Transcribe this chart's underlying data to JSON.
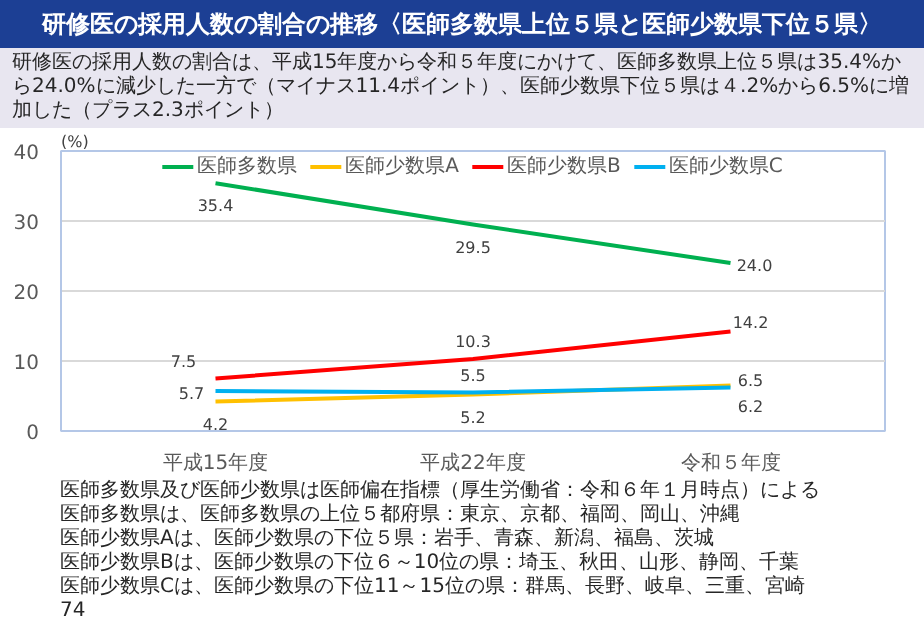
{
  "chart_data": {
    "type": "line",
    "title": "研修医の採用人数の割合の推移〈医師多数県上位５県と医師少数県下位５県〉",
    "subtitle": "研修医の採用人数の割合は、平成15年度から令和５年度にかけて、医師多数県上位５県は35.4%から24.0%に減少した一方で（マイナス11.4ポイント）、医師少数県下位５県は４.2%から6.5%に増加した（プラス2.3ポイント）",
    "ylabel": "(%)",
    "categories": [
      "平成15年度",
      "平成22年度",
      "令和５年度"
    ],
    "series": [
      {
        "name": "医師多数県",
        "color": "#00b050",
        "values": [
          35.4,
          29.5,
          24.0
        ],
        "value_labels": [
          "35.4",
          "29.5",
          "24.0"
        ]
      },
      {
        "name": "医師少数県A",
        "color": "#ffc000",
        "values": [
          4.2,
          5.2,
          6.5
        ],
        "value_labels": [
          "4.2",
          "5.2",
          "6.5"
        ]
      },
      {
        "name": "医師少数県B",
        "color": "#ff0000",
        "values": [
          7.5,
          10.3,
          14.2
        ],
        "value_labels": [
          "7.5",
          "10.3",
          "14.2"
        ]
      },
      {
        "name": "医師少数県C",
        "color": "#00b0f0",
        "values": [
          5.7,
          5.5,
          6.2
        ],
        "value_labels": [
          "5.7",
          "5.5",
          "6.2"
        ]
      }
    ],
    "ylim": [
      0,
      40
    ],
    "yticks": [
      0,
      10,
      20,
      30,
      40
    ],
    "grid": "y",
    "legend": "top",
    "marker": "none",
    "line_style": "solid",
    "annotations": [
      "医師多数県及び医師少数県は医師偏在指標（厚生労働省：令和６年１月時点）による",
      "医師多数県は、医師多数県の上位５都府県：東京、京都、福岡、岡山、沖縄",
      "医師少数県Aは、医師少数県の下位５県：岩手、青森、新潟、福島、茨城",
      "医師少数県Bは、医師少数県の下位６～10位の県：埼玉、秋田、山形、静岡、千葉",
      "医師少数県Cは、医師少数県の下位11～15位の県：群馬、長野、岐阜、三重、宮崎",
      "74"
    ]
  }
}
